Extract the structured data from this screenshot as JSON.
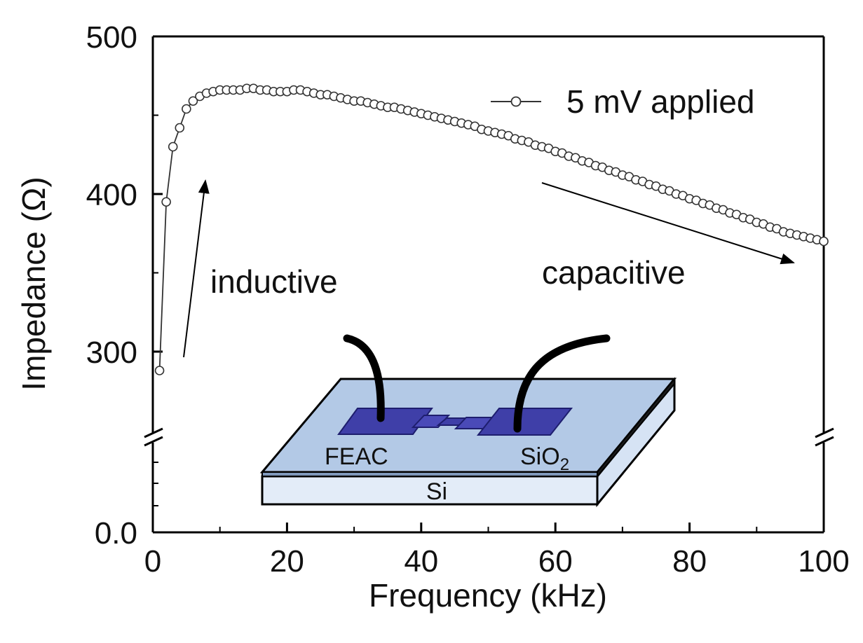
{
  "chart_data": {
    "type": "line",
    "xlabel": "Frequency (kHz)",
    "ylabel": "Impedance (Ω)",
    "xlim": [
      0,
      100
    ],
    "x_ticks": [
      "0",
      "20",
      "40",
      "60",
      "80",
      "100"
    ],
    "y_ticks": [
      "0.0",
      "300",
      "400",
      "500"
    ],
    "y_axis_break": true,
    "ylim_upper": [
      255,
      500
    ],
    "grid": false,
    "legend_position": "top-right",
    "series": [
      {
        "name": "5 mV applied",
        "marker": "open-circle",
        "color": "#333333",
        "x": [
          1,
          2,
          3,
          4,
          5,
          6,
          7,
          8,
          9,
          10,
          11,
          12,
          13,
          14,
          15,
          16,
          17,
          18,
          19,
          20,
          21,
          22,
          23,
          24,
          25,
          26,
          27,
          28,
          29,
          30,
          31,
          32,
          33,
          34,
          35,
          36,
          37,
          38,
          39,
          40,
          41,
          42,
          43,
          44,
          45,
          46,
          47,
          48,
          49,
          50,
          51,
          52,
          53,
          54,
          55,
          56,
          57,
          58,
          59,
          60,
          61,
          62,
          63,
          64,
          65,
          66,
          67,
          68,
          69,
          70,
          71,
          72,
          73,
          74,
          75,
          76,
          77,
          78,
          79,
          80,
          81,
          82,
          83,
          84,
          85,
          86,
          87,
          88,
          89,
          90,
          91,
          92,
          93,
          94,
          95,
          96,
          97,
          98,
          99,
          100
        ],
        "y": [
          288,
          395,
          430,
          442,
          454,
          459,
          462,
          464,
          465,
          466,
          466,
          466,
          466,
          467,
          467,
          466,
          466,
          465,
          465,
          465,
          466,
          466,
          465,
          464,
          463,
          463,
          462,
          461,
          460,
          459,
          459,
          458,
          457,
          456,
          455,
          455,
          454,
          453,
          452,
          451,
          450,
          449,
          448,
          447,
          446,
          445,
          444,
          443,
          441,
          440,
          439,
          438,
          437,
          435,
          434,
          433,
          431,
          430,
          429,
          427,
          426,
          424,
          423,
          421,
          420,
          418,
          417,
          415,
          414,
          412,
          411,
          409,
          408,
          406,
          405,
          403,
          402,
          400,
          399,
          397,
          396,
          394,
          393,
          391,
          390,
          388,
          387,
          385,
          384,
          382,
          381,
          379,
          378,
          376,
          375,
          374,
          373,
          372,
          371,
          370
        ]
      }
    ]
  },
  "annotations": {
    "inductive": "inductive",
    "capacitive": "capacitive"
  },
  "inset": {
    "label_left": "FEAC",
    "label_right_main": "SiO",
    "label_right_sub": "2",
    "label_bottom": "Si",
    "colors": {
      "top_face": "#b3c9e6",
      "side_face": "#c9daf1",
      "base_layer": "#e3ecf8",
      "electrode": "#3f3fa8",
      "electrode_top": "#5a5ac9",
      "wire": "#111111"
    }
  }
}
